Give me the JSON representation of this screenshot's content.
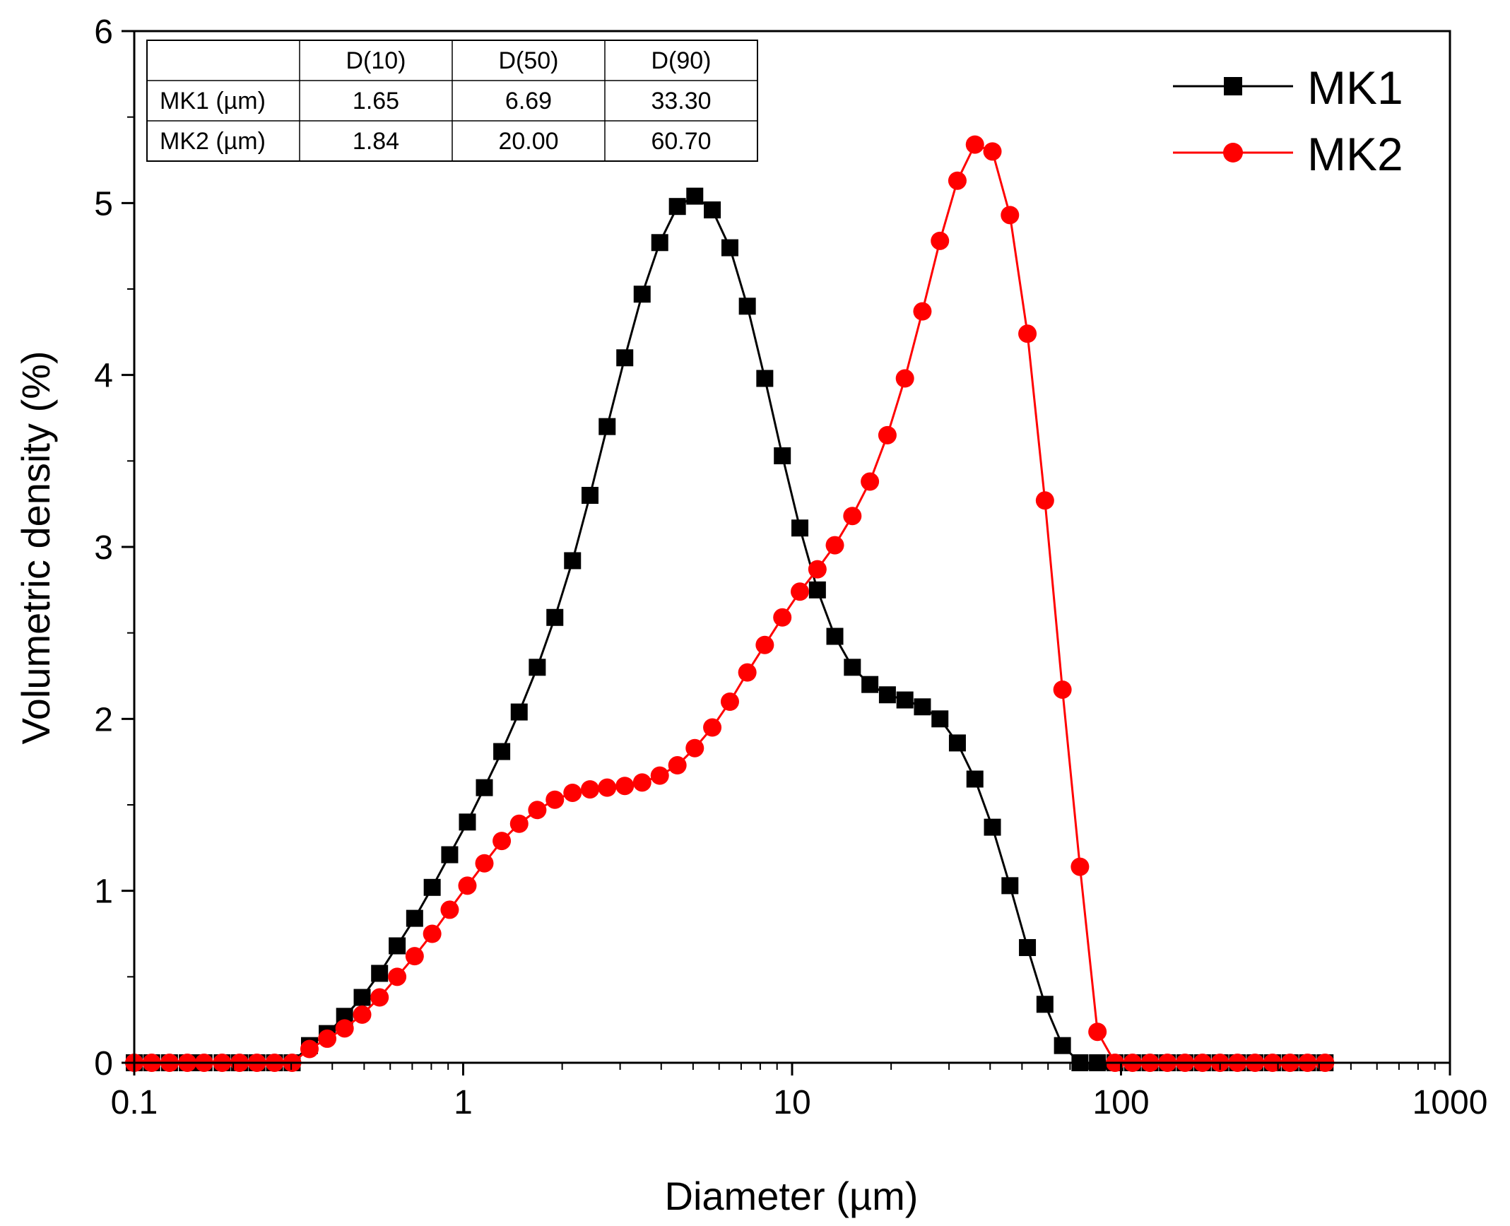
{
  "chart_data": {
    "type": "line",
    "title": "",
    "xlabel": "Diameter (µm)",
    "ylabel": "Volumetric density (%)",
    "xscale": "log",
    "xlim": [
      0.1,
      1000
    ],
    "ylim": [
      0,
      6
    ],
    "xticks": [
      {
        "value": 0.1,
        "label": "0.1"
      },
      {
        "value": 1,
        "label": "1"
      },
      {
        "value": 10,
        "label": "10"
      },
      {
        "value": 100,
        "label": "100"
      },
      {
        "value": 1000,
        "label": "1000"
      }
    ],
    "yticks": [
      {
        "value": 0,
        "label": "0"
      },
      {
        "value": 1,
        "label": "1"
      },
      {
        "value": 2,
        "label": "2"
      },
      {
        "value": 3,
        "label": "3"
      },
      {
        "value": 4,
        "label": "4"
      },
      {
        "value": 5,
        "label": "5"
      },
      {
        "value": 6,
        "label": "6"
      }
    ],
    "legend_position": "top-right",
    "series": [
      {
        "name": "MK1",
        "color": "#000000",
        "marker": "square",
        "x": [
          0.1,
          0.113,
          0.128,
          0.145,
          0.163,
          0.185,
          0.209,
          0.236,
          0.267,
          0.302,
          0.341,
          0.386,
          0.436,
          0.493,
          0.557,
          0.63,
          0.712,
          0.805,
          0.91,
          1.03,
          1.16,
          1.31,
          1.48,
          1.68,
          1.9,
          2.15,
          2.43,
          2.74,
          3.1,
          3.5,
          3.96,
          4.48,
          5.06,
          5.72,
          6.47,
          7.31,
          8.26,
          9.34,
          10.56,
          11.94,
          13.49,
          15.25,
          17.24,
          19.49,
          22.03,
          24.9,
          28.15,
          31.81,
          35.96,
          40.65,
          45.95,
          51.94,
          58.71,
          66.37,
          75.02,
          84.8,
          95.86,
          108.4,
          122.5,
          138.4,
          156.5,
          176.9,
          200,
          226,
          255.5,
          288.8,
          326.5,
          369,
          417.2
        ],
        "y": [
          0,
          0,
          0,
          0,
          0,
          0,
          0,
          0,
          0,
          0,
          0.1,
          0.17,
          0.27,
          0.38,
          0.52,
          0.68,
          0.84,
          1.02,
          1.21,
          1.4,
          1.6,
          1.81,
          2.04,
          2.3,
          2.59,
          2.92,
          3.3,
          3.7,
          4.1,
          4.47,
          4.77,
          4.98,
          5.04,
          4.96,
          4.74,
          4.4,
          3.98,
          3.53,
          3.11,
          2.75,
          2.48,
          2.3,
          2.2,
          2.14,
          2.11,
          2.07,
          2.0,
          1.86,
          1.65,
          1.37,
          1.03,
          0.67,
          0.34,
          0.1,
          0,
          0,
          0,
          0,
          0,
          0,
          0,
          0,
          0,
          0,
          0,
          0,
          0,
          0,
          0
        ]
      },
      {
        "name": "MK2",
        "color": "#ff0000",
        "marker": "circle",
        "x": [
          0.1,
          0.113,
          0.128,
          0.145,
          0.163,
          0.185,
          0.209,
          0.236,
          0.267,
          0.302,
          0.341,
          0.386,
          0.436,
          0.493,
          0.557,
          0.63,
          0.712,
          0.805,
          0.91,
          1.03,
          1.16,
          1.31,
          1.48,
          1.68,
          1.9,
          2.15,
          2.43,
          2.74,
          3.1,
          3.5,
          3.96,
          4.48,
          5.06,
          5.72,
          6.47,
          7.31,
          8.26,
          9.34,
          10.56,
          11.94,
          13.49,
          15.25,
          17.24,
          19.49,
          22.03,
          24.9,
          28.15,
          31.81,
          35.96,
          40.65,
          45.95,
          51.94,
          58.71,
          66.37,
          75.02,
          84.8,
          95.86,
          108.4,
          122.5,
          138.4,
          156.5,
          176.9,
          200,
          226,
          255.5,
          288.8,
          326.5,
          369,
          417.2
        ],
        "y": [
          0,
          0,
          0,
          0,
          0,
          0,
          0,
          0,
          0,
          0,
          0.08,
          0.14,
          0.2,
          0.28,
          0.38,
          0.5,
          0.62,
          0.75,
          0.89,
          1.03,
          1.16,
          1.29,
          1.39,
          1.47,
          1.53,
          1.57,
          1.59,
          1.6,
          1.61,
          1.63,
          1.67,
          1.73,
          1.83,
          1.95,
          2.1,
          2.27,
          2.43,
          2.59,
          2.74,
          2.87,
          3.01,
          3.18,
          3.38,
          3.65,
          3.98,
          4.37,
          4.78,
          5.13,
          5.34,
          5.3,
          4.93,
          4.24,
          3.27,
          2.17,
          1.14,
          0.18,
          0,
          0,
          0,
          0,
          0,
          0,
          0,
          0,
          0,
          0,
          0,
          0,
          0
        ]
      }
    ]
  },
  "table": {
    "headers": [
      "",
      "D(10)",
      "D(50)",
      "D(90)"
    ],
    "rows": [
      [
        "MK1 (µm)",
        "1.65",
        "6.69",
        "33.30"
      ],
      [
        "MK2 (µm)",
        "1.84",
        "20.00",
        "60.70"
      ]
    ]
  }
}
